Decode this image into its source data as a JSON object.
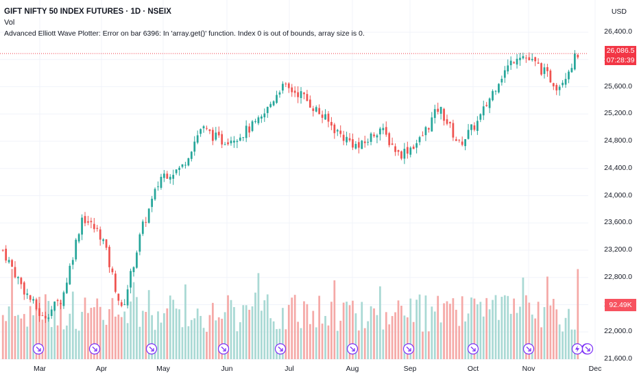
{
  "legend": {
    "title": "GIFT NIFTY 50 INDEX FUTURES · 1D · NSEIX",
    "vol_label": "Vol",
    "error_text": "Advanced Elliott Wave Plotter: Error on bar 6396: In 'array.get()' function. Index 0 is out of bounds, array size is 0."
  },
  "price_axis": {
    "currency": "USD",
    "ticks": [
      "26,400.0",
      "26,000.0",
      "25,600.0",
      "25,200.0",
      "24,800.0",
      "24,400.0",
      "24,000.0",
      "23,600.0",
      "23,200.0",
      "22,800.0",
      "22,400.0",
      "22,000.0",
      "21,600.0"
    ],
    "last_price": "26,086.5",
    "countdown": "07:28:39",
    "volume_value": "92.49K"
  },
  "time_axis": [
    "Mar",
    "Apr",
    "May",
    "Jun",
    "Jul",
    "Aug",
    "Sep",
    "Oct",
    "Nov",
    "Dec"
  ],
  "colors": {
    "up": "#26a69a",
    "down": "#ef5350",
    "vol_up": "#a9d9d4",
    "vol_down": "#f5a9a7",
    "event": "#7b2ff7"
  },
  "event_markers": [
    {
      "icon": "dividend-arrow-icon"
    },
    {
      "icon": "dividend-arrow-icon"
    },
    {
      "icon": "dividend-arrow-icon"
    },
    {
      "icon": "dividend-arrow-icon"
    },
    {
      "icon": "dividend-arrow-icon"
    },
    {
      "icon": "dividend-arrow-icon"
    },
    {
      "icon": "dividend-arrow-icon"
    },
    {
      "icon": "dividend-arrow-icon"
    },
    {
      "icon": "dividend-arrow-icon"
    },
    {
      "icon": "dividend-arrow-icon"
    },
    {
      "icon": "lightning-icon"
    },
    {
      "icon": "dividend-arrow-icon"
    }
  ],
  "chart_data": {
    "type": "candlestick",
    "title": "GIFT NIFTY 50 INDEX FUTURES · 1D · NSEIX",
    "ylim": [
      21500,
      26600
    ],
    "month_labels": [
      "Mar",
      "Apr",
      "May",
      "Jun",
      "Jul",
      "Aug",
      "Sep",
      "Oct",
      "Nov",
      "Dec"
    ],
    "approx_close_path": [
      {
        "period": "mid Feb",
        "close": 23200
      },
      {
        "period": "late Feb",
        "close": 22650
      },
      {
        "period": "early Mar",
        "close": 22200
      },
      {
        "period": "mid Mar",
        "close": 22500
      },
      {
        "period": "late Mar",
        "close": 23700
      },
      {
        "period": "early Apr",
        "close": 23400
      },
      {
        "period": "early-mid Apr",
        "close": 22300
      },
      {
        "period": "mid Apr",
        "close": 23500
      },
      {
        "period": "late Apr",
        "close": 24300
      },
      {
        "period": "early May",
        "close": 24400
      },
      {
        "period": "mid May",
        "close": 25000
      },
      {
        "period": "late May",
        "close": 24800
      },
      {
        "period": "early Jun",
        "close": 24900
      },
      {
        "period": "mid Jun",
        "close": 25100
      },
      {
        "period": "late Jun",
        "close": 25600
      },
      {
        "period": "early Jul",
        "close": 25500
      },
      {
        "period": "mid Jul",
        "close": 25200
      },
      {
        "period": "late Jul",
        "close": 24900
      },
      {
        "period": "early Aug",
        "close": 24700
      },
      {
        "period": "mid Aug",
        "close": 25000
      },
      {
        "period": "late Aug",
        "close": 24600
      },
      {
        "period": "early Sep",
        "close": 24800
      },
      {
        "period": "mid Sep",
        "close": 25300
      },
      {
        "period": "late Sep",
        "close": 24750
      },
      {
        "period": "early Oct",
        "close": 25100
      },
      {
        "period": "mid Oct",
        "close": 25700
      },
      {
        "period": "late Oct",
        "close": 26100
      },
      {
        "period": "early Nov",
        "close": 25900
      },
      {
        "period": "mid Nov",
        "close": 25600
      },
      {
        "period": "late Nov",
        "close": 26086.5
      }
    ],
    "last_price": 26086.5,
    "last_volume": "92.49K"
  }
}
